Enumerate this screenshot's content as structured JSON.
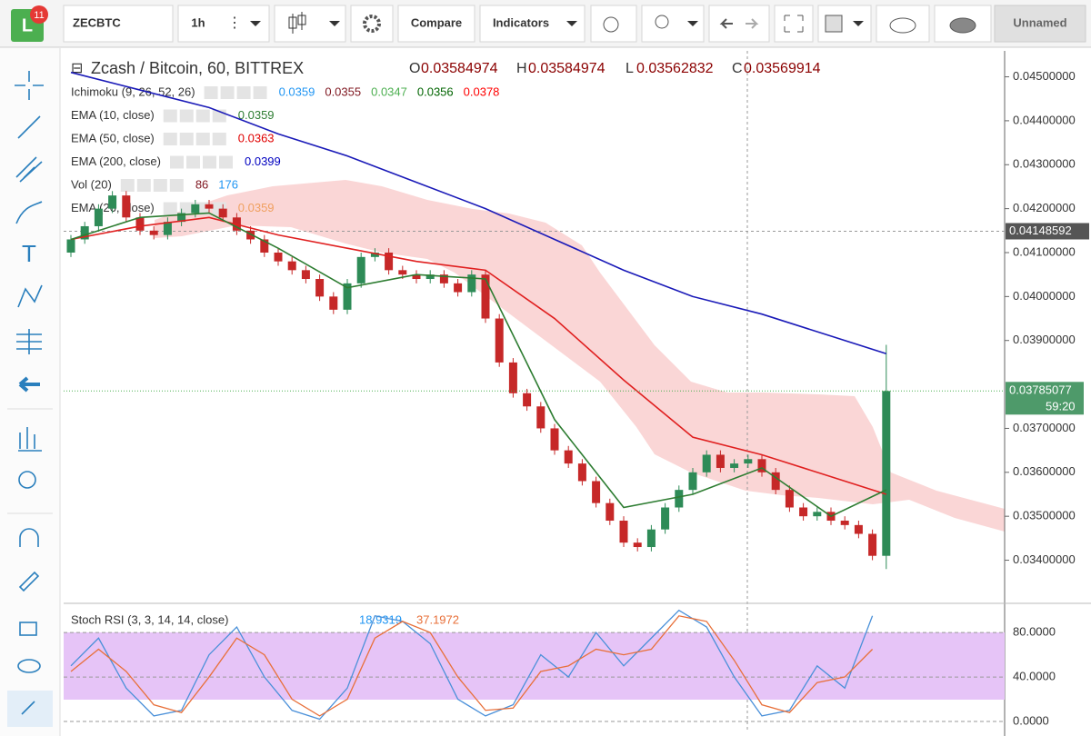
{
  "toolbar": {
    "badge": "11",
    "symbol": "ZECBTC",
    "interval": "1h",
    "compare": "Compare",
    "indicators": "Indicators",
    "layout": "Unnamed"
  },
  "legend": {
    "title": "Zcash / Bitcoin, 60, BITTREX",
    "o_label": "O",
    "o": "0.03584974",
    "h_label": "H",
    "h": "0.03584974",
    "l_label": "L",
    "l": "0.03562832",
    "c_label": "C",
    "c": "0.03569914",
    "studies": [
      {
        "name": "Ichimoku (9, 26, 52, 26)",
        "values": [
          {
            "text": "0.0359",
            "color": "#2196f3"
          },
          {
            "text": "0.0355",
            "color": "#801922"
          },
          {
            "text": "0.0347",
            "color": "#4caf50"
          },
          {
            "text": "0.0356",
            "color": "#006400"
          },
          {
            "text": "0.0378",
            "color": "#ff0000"
          }
        ]
      },
      {
        "name": "EMA (10, close)",
        "values": [
          {
            "text": "0.0359",
            "color": "#2e7d32"
          }
        ]
      },
      {
        "name": "EMA (50, close)",
        "values": [
          {
            "text": "0.0363",
            "color": "#e00000"
          }
        ]
      },
      {
        "name": "EMA (200, close)",
        "values": [
          {
            "text": "0.0399",
            "color": "#0000c0"
          }
        ]
      },
      {
        "name": "Vol (20)",
        "values": [
          {
            "text": "86",
            "color": "#801922"
          },
          {
            "text": "176",
            "color": "#2196f3"
          }
        ]
      },
      {
        "name": "EMA (26, close)",
        "values": [
          {
            "text": "0.0359",
            "color": "#f0a060"
          }
        ]
      }
    ]
  },
  "chart": {
    "type": "candlestick",
    "ylim": [
      0.04559,
      0.03306
    ],
    "yticks": [
      {
        "value": 0.045,
        "label": "0.04500000"
      },
      {
        "value": 0.044,
        "label": "0.04400000"
      },
      {
        "value": 0.043,
        "label": "0.04300000"
      },
      {
        "value": 0.042,
        "label": "0.04200000"
      },
      {
        "value": 0.041,
        "label": "0.04100000"
      },
      {
        "value": 0.04,
        "label": "0.04000000"
      },
      {
        "value": 0.039,
        "label": "0.03900000"
      },
      {
        "value": 0.037,
        "label": "0.03700000"
      },
      {
        "value": 0.036,
        "label": "0.03600000"
      },
      {
        "value": 0.035,
        "label": "0.03500000"
      },
      {
        "value": 0.034,
        "label": "0.03400000"
      }
    ],
    "crosshair_price": {
      "value": 0.04148592,
      "label": "0.04148592"
    },
    "last_price": {
      "value": 0.03785077,
      "label": "0.03785077",
      "countdown": "59:20"
    },
    "open": [
      0.041,
      0.0413,
      0.0416,
      0.042,
      0.0423,
      0.0418,
      0.0415,
      0.0414,
      0.0417,
      0.0419,
      0.0421,
      0.042,
      0.0418,
      0.0415,
      0.0413,
      0.041,
      0.0408,
      0.0406,
      0.0404,
      0.04,
      0.0397,
      0.0403,
      0.0409,
      0.041,
      0.0406,
      0.0405,
      0.0404,
      0.0405,
      0.0403,
      0.0401,
      0.0405,
      0.0395,
      0.0385,
      0.0378,
      0.0375,
      0.037,
      0.0365,
      0.0362,
      0.0358,
      0.0353,
      0.0349,
      0.0344,
      0.0343,
      0.0347,
      0.0352,
      0.0356,
      0.036,
      0.0364,
      0.0361,
      0.0362,
      0.0363,
      0.036,
      0.0356,
      0.0352,
      0.035,
      0.0351,
      0.0349,
      0.0348,
      0.0346,
      0.0341
    ],
    "high": [
      0.0414,
      0.0417,
      0.0421,
      0.0424,
      0.0424,
      0.0419,
      0.0416,
      0.0418,
      0.042,
      0.0422,
      0.0422,
      0.0421,
      0.0419,
      0.0416,
      0.0414,
      0.0411,
      0.0409,
      0.0407,
      0.0405,
      0.0401,
      0.0404,
      0.041,
      0.0411,
      0.0411,
      0.0407,
      0.0406,
      0.0406,
      0.0406,
      0.0404,
      0.0406,
      0.0406,
      0.0396,
      0.0386,
      0.0379,
      0.0376,
      0.0371,
      0.0366,
      0.0363,
      0.0359,
      0.0354,
      0.035,
      0.0345,
      0.0348,
      0.0353,
      0.0357,
      0.0361,
      0.0365,
      0.0365,
      0.0363,
      0.0364,
      0.0364,
      0.0361,
      0.0357,
      0.0353,
      0.0352,
      0.0352,
      0.035,
      0.0349,
      0.0347,
      0.0389
    ],
    "low": [
      0.0409,
      0.0412,
      0.0415,
      0.0419,
      0.0417,
      0.0414,
      0.0413,
      0.0413,
      0.0416,
      0.0418,
      0.0419,
      0.0417,
      0.0414,
      0.0412,
      0.0409,
      0.0407,
      0.0405,
      0.0403,
      0.0399,
      0.0396,
      0.0396,
      0.0402,
      0.0408,
      0.0405,
      0.0404,
      0.0403,
      0.0403,
      0.0402,
      0.04,
      0.04,
      0.0394,
      0.0384,
      0.0377,
      0.0374,
      0.0369,
      0.0364,
      0.0361,
      0.0357,
      0.0352,
      0.0348,
      0.0343,
      0.0342,
      0.0342,
      0.0346,
      0.0351,
      0.0355,
      0.0359,
      0.036,
      0.036,
      0.0361,
      0.0359,
      0.0355,
      0.0351,
      0.0349,
      0.0349,
      0.0348,
      0.0347,
      0.0345,
      0.034,
      0.0338
    ],
    "close": [
      0.0413,
      0.0416,
      0.042,
      0.0423,
      0.0418,
      0.0415,
      0.0414,
      0.0417,
      0.0419,
      0.0421,
      0.042,
      0.0418,
      0.0415,
      0.0413,
      0.041,
      0.0408,
      0.0406,
      0.0404,
      0.04,
      0.0397,
      0.0403,
      0.0409,
      0.041,
      0.0406,
      0.0405,
      0.0404,
      0.0405,
      0.0403,
      0.0401,
      0.0405,
      0.0395,
      0.0385,
      0.0378,
      0.0375,
      0.037,
      0.0365,
      0.0362,
      0.0358,
      0.0353,
      0.0349,
      0.0344,
      0.0343,
      0.0347,
      0.0352,
      0.0356,
      0.036,
      0.0364,
      0.0361,
      0.0362,
      0.0363,
      0.036,
      0.0356,
      0.0352,
      0.035,
      0.0351,
      0.0349,
      0.0348,
      0.0346,
      0.0341,
      0.03785
    ],
    "up_color": "#2e8b57",
    "down_color": "#c62828",
    "lines": [
      {
        "color": "#1a1ab8",
        "x": [
          0,
          5,
          10,
          15,
          20,
          25,
          30,
          35,
          40,
          45,
          50,
          55,
          59
        ],
        "values": [
          0.0451,
          0.0447,
          0.0443,
          0.0437,
          0.0432,
          0.0426,
          0.042,
          0.0413,
          0.0406,
          0.04,
          0.0396,
          0.0391,
          0.0387
        ]
      },
      {
        "color": "#e02020",
        "x": [
          0,
          5,
          10,
          15,
          20,
          25,
          30,
          35,
          40,
          45,
          50,
          55,
          59
        ],
        "values": [
          0.0413,
          0.0416,
          0.0418,
          0.0414,
          0.0411,
          0.0408,
          0.0406,
          0.0395,
          0.0381,
          0.0368,
          0.0364,
          0.0359,
          0.0355
        ]
      },
      {
        "color": "#2e7d32",
        "x": [
          0,
          5,
          10,
          15,
          20,
          25,
          30,
          35,
          40,
          45,
          50,
          55,
          59
        ],
        "values": [
          0.0413,
          0.0418,
          0.0419,
          0.0411,
          0.0402,
          0.0405,
          0.0404,
          0.0372,
          0.0352,
          0.0355,
          0.0361,
          0.035,
          0.0356
        ]
      }
    ]
  },
  "stoch": {
    "title": "Stoch RSI (3, 3, 14, 14, close)",
    "k_value": "18.9319",
    "d_value": "37.1972",
    "ylim": [
      -9,
      103
    ],
    "yticks": [
      {
        "value": 0,
        "label": "0.0000"
      },
      {
        "value": 40,
        "label": "40.0000"
      },
      {
        "value": 80,
        "label": "80.0000"
      }
    ],
    "x": [
      0,
      2,
      4,
      6,
      8,
      10,
      12,
      14,
      16,
      18,
      20,
      22,
      24,
      26,
      28,
      30,
      32,
      34,
      36,
      38,
      40,
      42,
      44,
      46,
      48,
      50,
      52,
      54,
      56,
      58
    ],
    "series": [
      {
        "color": "#4a90d9",
        "values": [
          50,
          75,
          30,
          5,
          10,
          60,
          85,
          40,
          10,
          2,
          30,
          95,
          90,
          70,
          20,
          5,
          15,
          60,
          40,
          80,
          50,
          75,
          100,
          85,
          40,
          5,
          10,
          50,
          30,
          95
        ]
      },
      {
        "color": "#e8703a",
        "values": [
          45,
          65,
          45,
          15,
          8,
          40,
          75,
          60,
          20,
          5,
          20,
          75,
          90,
          80,
          40,
          10,
          12,
          45,
          50,
          65,
          60,
          65,
          95,
          90,
          55,
          15,
          8,
          35,
          40,
          65
        ]
      }
    ]
  }
}
